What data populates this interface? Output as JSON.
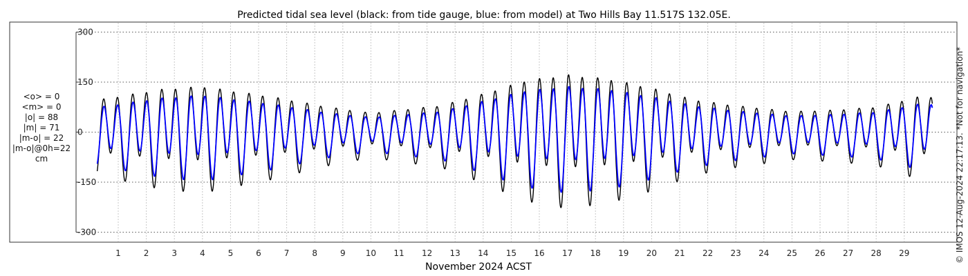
{
  "chart_data": {
    "type": "line",
    "title": "Predicted tidal sea level (black: from tide gauge, blue: from model) at Two Hills Bay 11.517S 132.05E.",
    "xlabel": "November 2024 ACST",
    "ylabel": "",
    "ylim": [
      -330,
      330
    ],
    "y_ticks": [
      -300,
      -150,
      0,
      150,
      300
    ],
    "y_tick_labels": [
      "-300",
      "-150",
      "0",
      "150",
      "300"
    ],
    "xlim": [
      0.25,
      30.0
    ],
    "x_ticks": [
      1,
      2,
      3,
      4,
      5,
      6,
      7,
      8,
      9,
      10,
      11,
      12,
      13,
      14,
      15,
      16,
      17,
      18,
      19,
      20,
      21,
      22,
      23,
      24,
      25,
      26,
      27,
      28,
      29
    ],
    "x_tick_labels": [
      "1",
      "2",
      "3",
      "4",
      "5",
      "6",
      "7",
      "8",
      "9",
      "10",
      "11",
      "12",
      "13",
      "14",
      "15",
      "16",
      "17",
      "18",
      "19",
      "20",
      "21",
      "22",
      "23",
      "24",
      "25",
      "26",
      "27",
      "28",
      "29"
    ],
    "grid": true,
    "series": [
      {
        "name": "from tide gauge",
        "color": "#000000",
        "x_start": 0.25,
        "x_end": 30.0,
        "amplitude_envelope": {
          "day": [
            0.3,
            2.5,
            4.0,
            6.5,
            8.5,
            10.0,
            12.5,
            14.0,
            15.5,
            17.0,
            18.5,
            20.0,
            21.5,
            23.0,
            25.0,
            26.5,
            28.0,
            29.5
          ],
          "amp": [
            110,
            145,
            155,
            120,
            85,
            65,
            90,
            130,
            175,
            195,
            180,
            150,
            110,
            90,
            70,
            75,
            85,
            120
          ]
        }
      },
      {
        "name": "from model",
        "color": "#0000ff",
        "x_start": 0.25,
        "x_end": 30.0,
        "amplitude_envelope": {
          "day": [
            0.3,
            2.5,
            4.0,
            6.5,
            8.5,
            10.0,
            12.5,
            14.0,
            15.5,
            17.0,
            18.5,
            20.0,
            21.5,
            23.0,
            25.0,
            26.5,
            28.0,
            29.5
          ],
          "amp": [
            85,
            115,
            125,
            95,
            65,
            50,
            70,
            105,
            140,
            155,
            145,
            120,
            90,
            72,
            55,
            60,
            68,
            95
          ]
        }
      }
    ]
  },
  "stats": [
    "<o> = 0",
    "<m> = 0",
    "|o| = 88",
    "|m| = 71",
    "|m-o| = 22",
    "|m-o|@0h=22",
    "cm"
  ],
  "side_note": "© IMOS 12-Aug-2024 22:17:13. *Not for navigation*"
}
